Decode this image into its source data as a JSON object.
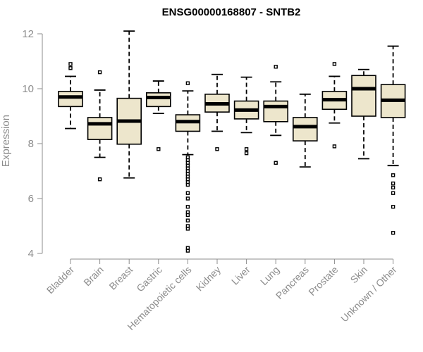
{
  "chart_data": {
    "type": "boxplot",
    "title": "ENSG00000168807 - SNTB2",
    "xlabel": "",
    "ylabel": "Expression",
    "ylim": [
      4,
      12
    ],
    "yticks": [
      4,
      6,
      8,
      10,
      12
    ],
    "categories": [
      "Bladder",
      "Brain",
      "Breast",
      "Gastric",
      "Hematopoietic cells",
      "Kidney",
      "Liver",
      "Lung",
      "Pancreas",
      "Prostate",
      "Skin",
      "Unknown / Other"
    ],
    "boxes": [
      {
        "label": "Bladder",
        "whisker_low": 8.55,
        "q1": 9.35,
        "median": 9.7,
        "q3": 9.9,
        "whisker_high": 10.45,
        "outliers": [
          10.75,
          10.9
        ]
      },
      {
        "label": "Brain",
        "whisker_low": 7.5,
        "q1": 8.15,
        "median": 8.72,
        "q3": 8.95,
        "whisker_high": 9.95,
        "outliers": [
          10.6,
          6.7
        ]
      },
      {
        "label": "Breast",
        "whisker_low": 6.75,
        "q1": 7.98,
        "median": 8.82,
        "q3": 9.65,
        "whisker_high": 12.1,
        "outliers": []
      },
      {
        "label": "Gastric",
        "whisker_low": 9.1,
        "q1": 9.35,
        "median": 9.68,
        "q3": 9.85,
        "whisker_high": 10.28,
        "outliers": [
          7.8
        ]
      },
      {
        "label": "Hematopoietic cells",
        "whisker_low": 7.6,
        "q1": 8.45,
        "median": 8.8,
        "q3": 9.05,
        "whisker_high": 9.92,
        "outliers": [
          10.2,
          7.5,
          7.4,
          7.3,
          7.2,
          7.1,
          7.0,
          6.9,
          6.8,
          6.7,
          6.6,
          6.5,
          6.2,
          6.0,
          5.7,
          5.5,
          5.4,
          5.2,
          5.0,
          4.9,
          4.2,
          4.1
        ]
      },
      {
        "label": "Kidney",
        "whisker_low": 8.45,
        "q1": 9.15,
        "median": 9.45,
        "q3": 9.8,
        "whisker_high": 10.52,
        "outliers": [
          7.8
        ]
      },
      {
        "label": "Liver",
        "whisker_low": 8.4,
        "q1": 8.9,
        "median": 9.22,
        "q3": 9.55,
        "whisker_high": 10.42,
        "outliers": [
          7.8,
          7.65
        ]
      },
      {
        "label": "Lung",
        "whisker_low": 8.3,
        "q1": 8.8,
        "median": 9.35,
        "q3": 9.55,
        "whisker_high": 10.25,
        "outliers": [
          10.8,
          7.3
        ]
      },
      {
        "label": "Pancreas",
        "whisker_low": 7.15,
        "q1": 8.1,
        "median": 8.62,
        "q3": 8.95,
        "whisker_high": 9.8,
        "outliers": []
      },
      {
        "label": "Prostate",
        "whisker_low": 8.75,
        "q1": 9.25,
        "median": 9.6,
        "q3": 9.9,
        "whisker_high": 10.45,
        "outliers": [
          10.9,
          7.9
        ]
      },
      {
        "label": "Skin",
        "whisker_low": 7.45,
        "q1": 9.0,
        "median": 10.0,
        "q3": 10.48,
        "whisker_high": 10.7,
        "outliers": []
      },
      {
        "label": "Unknown / Other",
        "whisker_low": 7.2,
        "q1": 8.95,
        "median": 9.58,
        "q3": 10.15,
        "whisker_high": 11.55,
        "outliers": [
          6.85,
          6.55,
          6.4,
          6.2,
          5.7,
          4.75
        ]
      }
    ]
  },
  "colors": {
    "box_fill": "#ede6cc",
    "stroke": "#000000",
    "axis": "#8c8c8c"
  }
}
